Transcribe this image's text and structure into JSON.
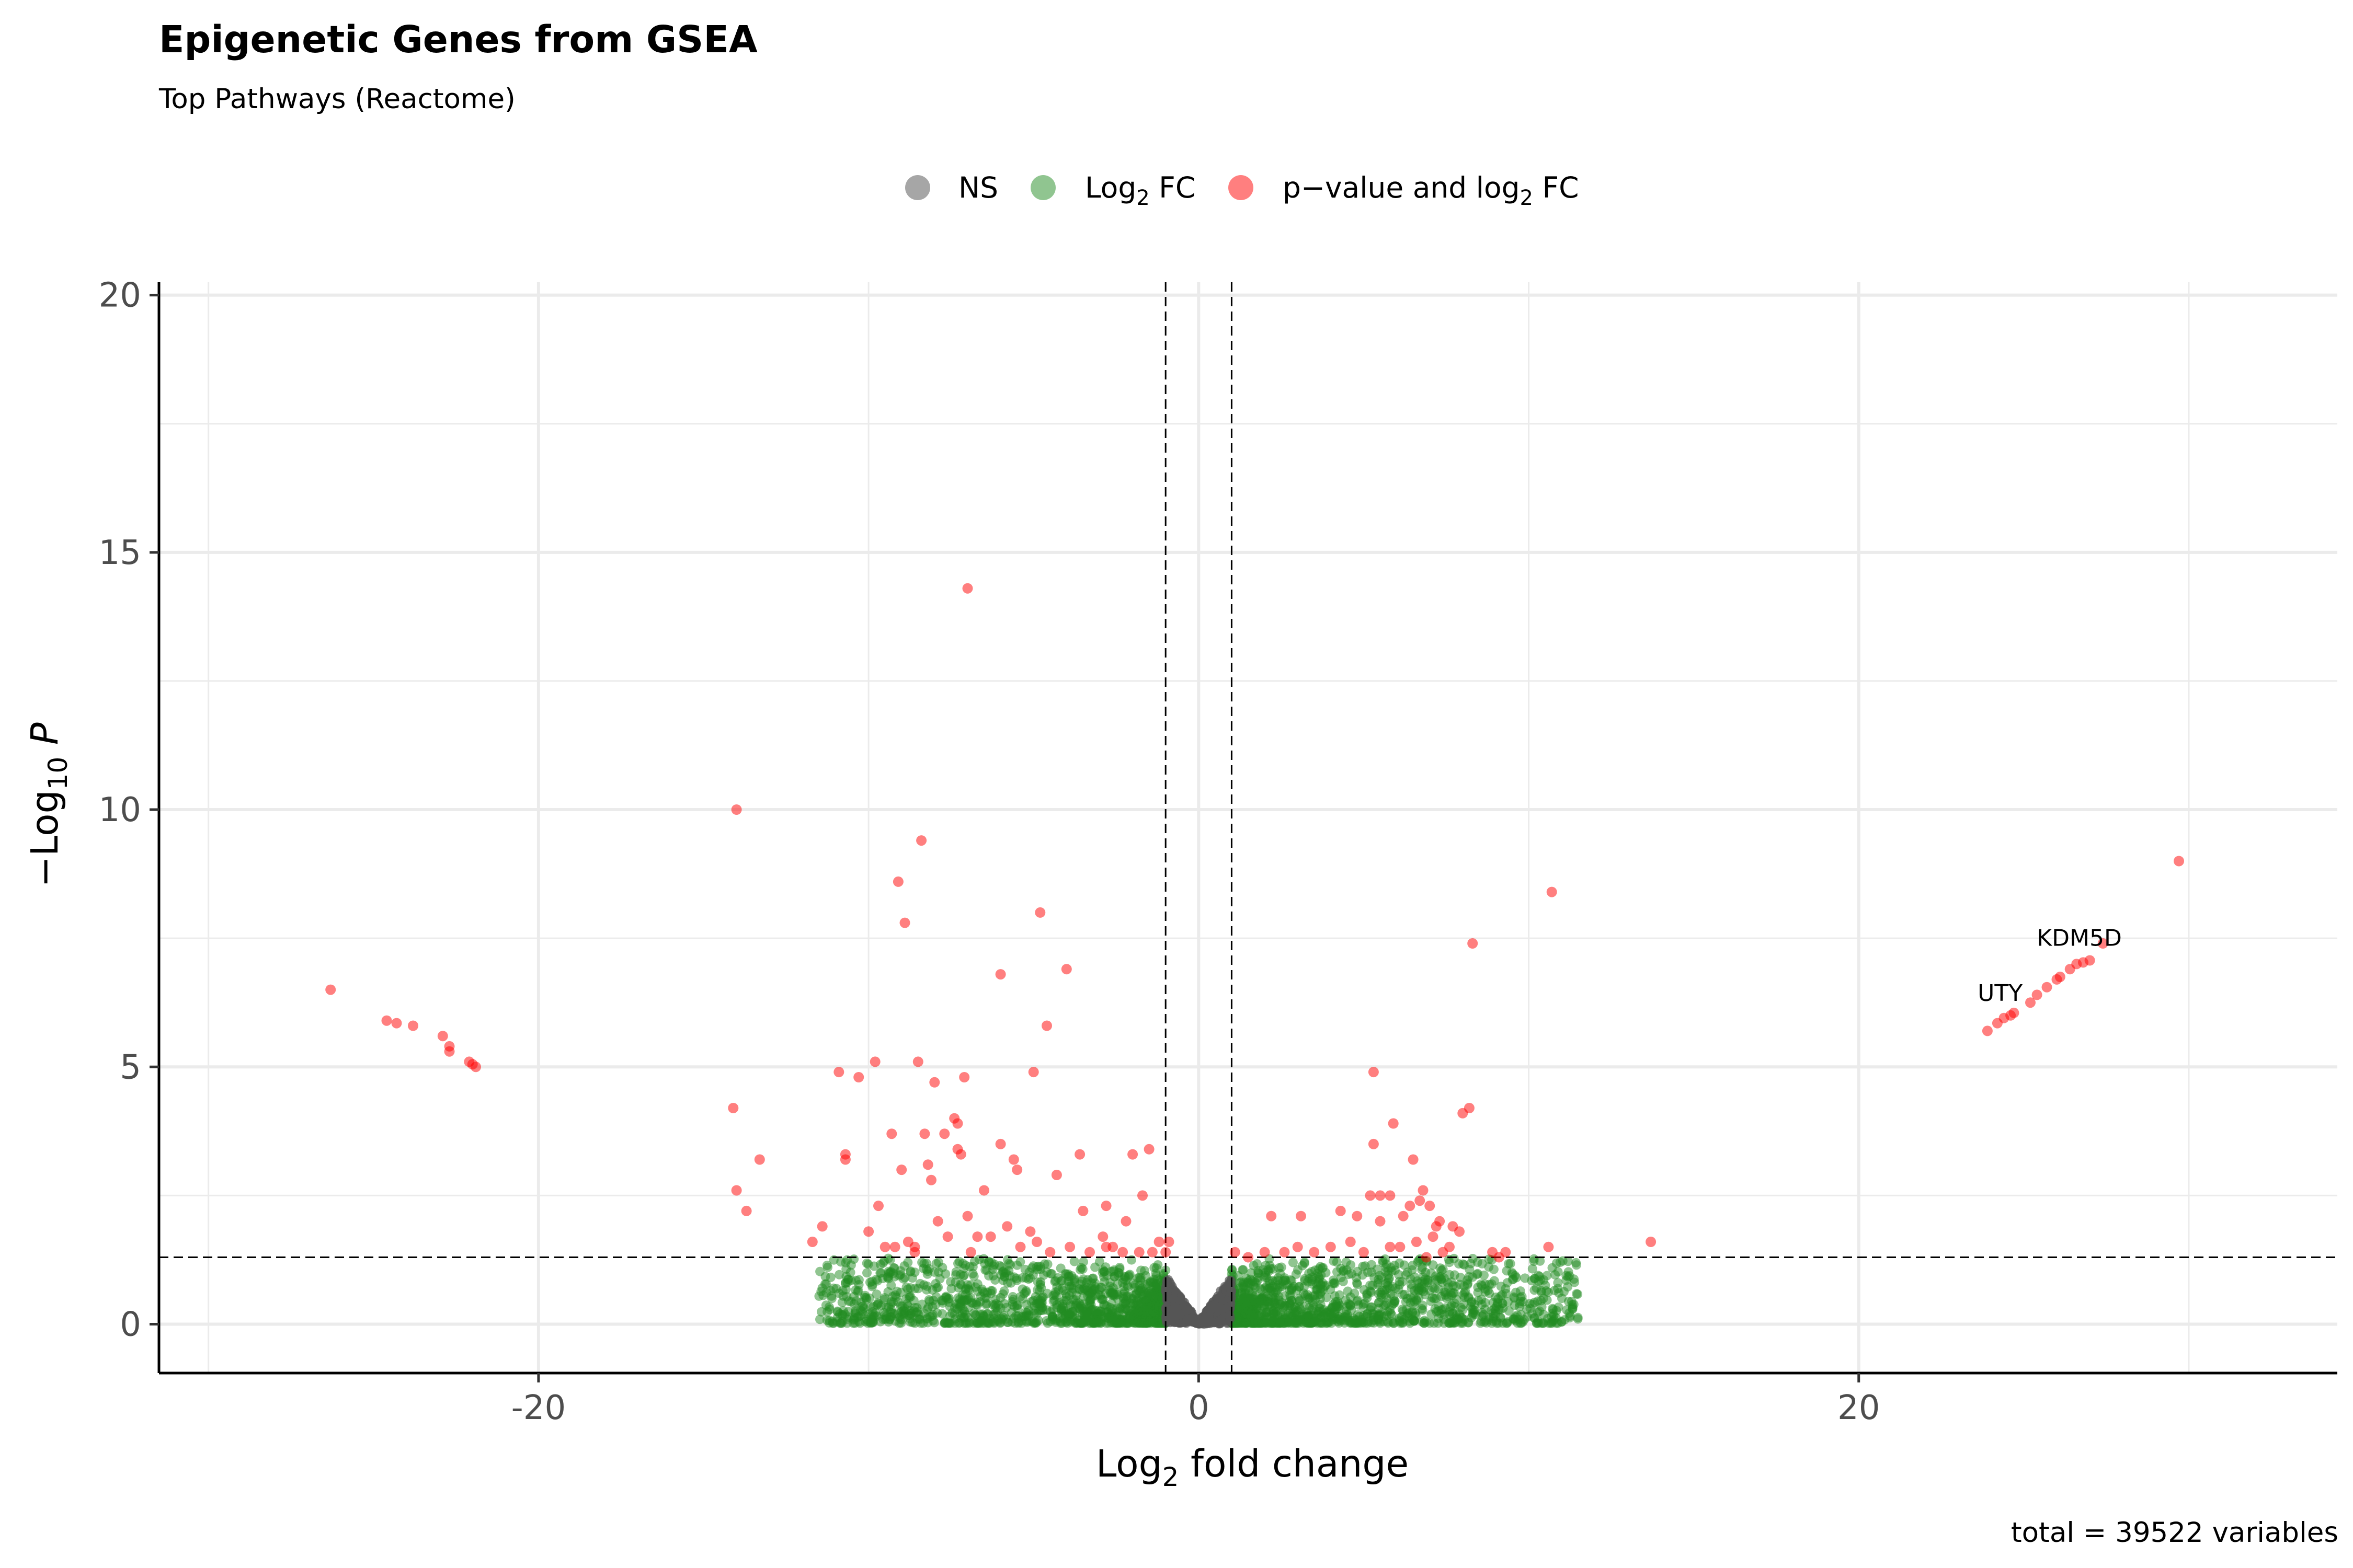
{
  "chart_data": {
    "type": "scatter",
    "title": "Epigenetic Genes from GSEA",
    "subtitle": "Top Pathways (Reactome)",
    "xlabel_base": "Log",
    "xlabel_sub": "2",
    "xlabel_rest": " fold change",
    "ylabel_base": "−Log",
    "ylabel_sub": "10",
    "ylabel_rest": " P",
    "caption": "total = 39522 variables",
    "xlim": [
      -31.5,
      34.5
    ],
    "ylim": [
      -0.95,
      20.25
    ],
    "x_ticks": [
      -20,
      0,
      20
    ],
    "x_tick_labels": [
      "-20",
      "0",
      "20"
    ],
    "y_ticks": [
      0,
      5,
      10,
      15,
      20
    ],
    "y_tick_labels": [
      "0",
      "5",
      "10",
      "15",
      "20"
    ],
    "grid": true,
    "legend_position": "top",
    "fc_cutoff": 1,
    "p_cutoff_neglog10": 1.3,
    "legend": [
      {
        "key": "ns",
        "label": "NS",
        "color": "#808080"
      },
      {
        "key": "fc",
        "label_base": "Log",
        "label_sub": "2",
        "label_rest": " FC",
        "color": "#228b22"
      },
      {
        "key": "both",
        "label_base": "p−value and log",
        "label_sub": "2",
        "label_rest": " FC",
        "color": "#ff0000"
      }
    ],
    "series": [
      {
        "name": "p−value and log2 FC",
        "color": "#ff0000",
        "points": [
          [
            -26.3,
            6.5
          ],
          [
            -24.6,
            5.9
          ],
          [
            -24.3,
            5.85
          ],
          [
            -23.8,
            5.8
          ],
          [
            -22.9,
            5.6
          ],
          [
            -22.7,
            5.3
          ],
          [
            -22.7,
            5.4
          ],
          [
            -22.1,
            5.1
          ],
          [
            -22.0,
            5.05
          ],
          [
            -21.9,
            5.0
          ],
          [
            -14.0,
            10.0
          ],
          [
            -14.1,
            4.2
          ],
          [
            -14.0,
            2.6
          ],
          [
            -13.7,
            2.2
          ],
          [
            -13.3,
            3.2
          ],
          [
            -11.7,
            1.6
          ],
          [
            -11.4,
            1.9
          ],
          [
            -10.9,
            4.9
          ],
          [
            -10.7,
            3.3
          ],
          [
            -10.7,
            3.2
          ],
          [
            -10.3,
            4.8
          ],
          [
            -9.8,
            5.1
          ],
          [
            -10.0,
            1.8
          ],
          [
            -9.7,
            2.3
          ],
          [
            -9.5,
            1.5
          ],
          [
            -9.3,
            3.7
          ],
          [
            -9.2,
            1.5
          ],
          [
            -9.1,
            8.6
          ],
          [
            -8.9,
            7.8
          ],
          [
            -9.0,
            3.0
          ],
          [
            -8.8,
            1.6
          ],
          [
            -8.6,
            1.5
          ],
          [
            -8.5,
            5.1
          ],
          [
            -8.6,
            1.4
          ],
          [
            -8.4,
            9.4
          ],
          [
            -8.3,
            3.7
          ],
          [
            -8.2,
            3.1
          ],
          [
            -8.1,
            2.8
          ],
          [
            -8.0,
            4.7
          ],
          [
            -7.9,
            2.0
          ],
          [
            -7.7,
            3.7
          ],
          [
            -7.6,
            1.7
          ],
          [
            -7.4,
            4.0
          ],
          [
            -7.3,
            3.9
          ],
          [
            -7.3,
            3.4
          ],
          [
            -7.2,
            3.3
          ],
          [
            -7.1,
            4.8
          ],
          [
            -7.0,
            14.3
          ],
          [
            -7.0,
            2.1
          ],
          [
            -6.9,
            1.4
          ],
          [
            -6.7,
            1.7
          ],
          [
            -6.5,
            2.6
          ],
          [
            -6.3,
            1.7
          ],
          [
            -6.0,
            6.8
          ],
          [
            -6.0,
            3.5
          ],
          [
            -5.8,
            1.9
          ],
          [
            -5.6,
            3.2
          ],
          [
            -5.5,
            3.0
          ],
          [
            -5.4,
            1.5
          ],
          [
            -5.1,
            1.8
          ],
          [
            -5.0,
            4.9
          ],
          [
            -4.9,
            1.6
          ],
          [
            -4.8,
            8.0
          ],
          [
            -4.6,
            5.8
          ],
          [
            -4.5,
            1.4
          ],
          [
            -4.3,
            2.9
          ],
          [
            -4.0,
            6.9
          ],
          [
            -3.9,
            1.5
          ],
          [
            -3.6,
            3.3
          ],
          [
            -3.5,
            2.2
          ],
          [
            -3.3,
            1.4
          ],
          [
            -2.9,
            1.7
          ],
          [
            -2.8,
            1.5
          ],
          [
            -2.8,
            2.3
          ],
          [
            -2.6,
            1.5
          ],
          [
            -2.3,
            1.4
          ],
          [
            -2.0,
            3.3
          ],
          [
            -1.8,
            1.4
          ],
          [
            -1.5,
            3.4
          ],
          [
            -1.4,
            1.4
          ],
          [
            -1.2,
            1.6
          ],
          [
            -0.9,
            1.6
          ],
          [
            -1.7,
            2.5
          ],
          [
            -1.0,
            1.4
          ],
          [
            -2.2,
            2.0
          ],
          [
            1.1,
            1.4
          ],
          [
            1.5,
            1.3
          ],
          [
            2.0,
            1.4
          ],
          [
            2.2,
            2.1
          ],
          [
            2.6,
            1.4
          ],
          [
            3.0,
            1.5
          ],
          [
            3.1,
            2.1
          ],
          [
            3.5,
            1.4
          ],
          [
            4.0,
            1.5
          ],
          [
            4.3,
            2.2
          ],
          [
            4.6,
            1.6
          ],
          [
            4.8,
            2.1
          ],
          [
            5.0,
            1.4
          ],
          [
            5.2,
            2.5
          ],
          [
            5.3,
            3.5
          ],
          [
            5.3,
            4.9
          ],
          [
            5.5,
            2.5
          ],
          [
            5.5,
            2.0
          ],
          [
            5.8,
            2.5
          ],
          [
            5.8,
            1.5
          ],
          [
            5.9,
            3.9
          ],
          [
            6.1,
            1.5
          ],
          [
            6.2,
            2.1
          ],
          [
            6.4,
            2.3
          ],
          [
            6.5,
            3.2
          ],
          [
            6.6,
            1.6
          ],
          [
            6.7,
            2.4
          ],
          [
            6.8,
            2.6
          ],
          [
            6.9,
            1.3
          ],
          [
            7.0,
            2.3
          ],
          [
            7.1,
            1.7
          ],
          [
            7.2,
            1.9
          ],
          [
            7.3,
            2.0
          ],
          [
            7.4,
            1.4
          ],
          [
            7.6,
            1.5
          ],
          [
            7.7,
            1.9
          ],
          [
            7.9,
            1.8
          ],
          [
            8.0,
            4.1
          ],
          [
            8.2,
            4.2
          ],
          [
            8.3,
            7.4
          ],
          [
            8.9,
            1.4
          ],
          [
            9.1,
            1.3
          ],
          [
            9.3,
            1.4
          ],
          [
            10.6,
            1.5
          ],
          [
            10.7,
            8.4
          ],
          [
            13.7,
            1.6
          ],
          [
            23.9,
            5.7
          ],
          [
            24.2,
            5.85
          ],
          [
            24.4,
            5.95
          ],
          [
            24.6,
            6.0
          ],
          [
            24.7,
            6.05
          ],
          [
            25.2,
            6.25
          ],
          [
            25.4,
            6.4
          ],
          [
            25.7,
            6.55
          ],
          [
            26.0,
            6.7
          ],
          [
            26.1,
            6.75
          ],
          [
            26.4,
            6.9
          ],
          [
            26.6,
            7.0
          ],
          [
            26.8,
            7.03
          ],
          [
            27.0,
            7.07
          ],
          [
            27.4,
            7.4
          ],
          [
            29.7,
            9.0
          ]
        ]
      }
    ],
    "annotations": [
      {
        "text": "KDM5D",
        "x": 27.0,
        "y": 7.07
      },
      {
        "text": "UTY",
        "x": 24.6,
        "y": 6.0
      }
    ]
  }
}
